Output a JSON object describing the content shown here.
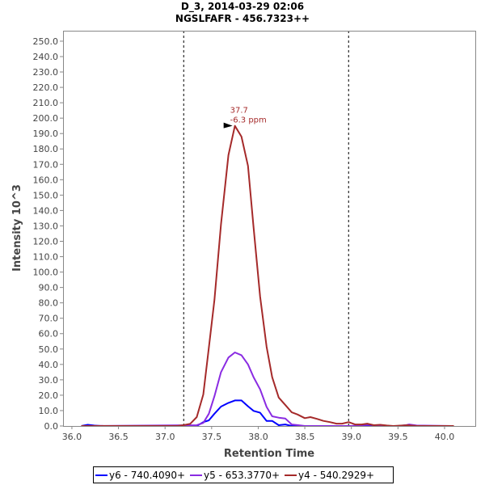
{
  "chart_data": {
    "type": "line",
    "title": "D_3, 2014-03-29 02:06",
    "subtitle": "NGSLFAFR - 456.7323++",
    "xlabel": "Retention Time",
    "ylabel": "Intensity 10^3",
    "xlim": [
      35.905,
      40.33
    ],
    "ylim": [
      0,
      256.8
    ],
    "xticks": [
      "36.0",
      "36.5",
      "37.0",
      "37.5",
      "38.0",
      "38.5",
      "39.0",
      "39.5",
      "40.0"
    ],
    "xtick_values": [
      36.0,
      36.5,
      37.0,
      37.5,
      38.0,
      38.5,
      39.0,
      39.5,
      40.0
    ],
    "ytick_step": 10,
    "ytick_max": 250,
    "grid": false,
    "legend_position": "bottom",
    "integration_bounds": [
      37.2,
      38.97
    ],
    "annotation": {
      "x": 37.75,
      "y": 195,
      "line1": "37.7",
      "line2": "-6.3 ppm",
      "color": "#a52a2a"
    },
    "series": [
      {
        "name": "y6 - 740.4090+",
        "color": "#0000ff",
        "points": [
          [
            36.1,
            0
          ],
          [
            36.17,
            0.8
          ],
          [
            36.24,
            0.3
          ],
          [
            36.31,
            0
          ],
          [
            37.34,
            0
          ],
          [
            37.41,
            2.5
          ],
          [
            37.47,
            3.7
          ],
          [
            37.53,
            8
          ],
          [
            37.6,
            12.6
          ],
          [
            37.68,
            15
          ],
          [
            37.75,
            16.6
          ],
          [
            37.82,
            16.6
          ],
          [
            37.89,
            12.8
          ],
          [
            37.95,
            9.8
          ],
          [
            38.02,
            8.6
          ],
          [
            38.09,
            3.3
          ],
          [
            38.15,
            3.3
          ],
          [
            38.22,
            0.5
          ],
          [
            38.29,
            1
          ],
          [
            38.36,
            0
          ],
          [
            39.5,
            0
          ],
          [
            39.6,
            0.6
          ],
          [
            39.7,
            0
          ],
          [
            40.1,
            0
          ]
        ]
      },
      {
        "name": "y5 - 653.3770+",
        "color": "#8a2be2",
        "points": [
          [
            36.1,
            0
          ],
          [
            37.34,
            0.5
          ],
          [
            37.41,
            2
          ],
          [
            37.47,
            8
          ],
          [
            37.53,
            19.4
          ],
          [
            37.6,
            35
          ],
          [
            37.68,
            44.5
          ],
          [
            37.75,
            47.8
          ],
          [
            37.82,
            46
          ],
          [
            37.89,
            40
          ],
          [
            37.95,
            31.7
          ],
          [
            38.02,
            23.8
          ],
          [
            38.09,
            12.4
          ],
          [
            38.15,
            6.3
          ],
          [
            38.22,
            5.4
          ],
          [
            38.29,
            4.9
          ],
          [
            38.36,
            1
          ],
          [
            38.43,
            0.5
          ],
          [
            38.5,
            0
          ],
          [
            39.0,
            0
          ],
          [
            39.1,
            0.5
          ],
          [
            39.2,
            0.8
          ],
          [
            39.3,
            0
          ],
          [
            39.55,
            0
          ],
          [
            39.62,
            1
          ],
          [
            39.7,
            0.3
          ],
          [
            40.1,
            0
          ]
        ]
      },
      {
        "name": "y4 - 540.2929+",
        "color": "#a52a2a",
        "points": [
          [
            36.1,
            0
          ],
          [
            37.13,
            0
          ],
          [
            37.195,
            0.5
          ],
          [
            37.27,
            1.4
          ],
          [
            37.34,
            5.8
          ],
          [
            37.41,
            20.5
          ],
          [
            37.47,
            51
          ],
          [
            37.53,
            82
          ],
          [
            37.6,
            131
          ],
          [
            37.68,
            176
          ],
          [
            37.75,
            195
          ],
          [
            37.82,
            188
          ],
          [
            37.89,
            169
          ],
          [
            37.95,
            129
          ],
          [
            38.02,
            84
          ],
          [
            38.09,
            51.5
          ],
          [
            38.15,
            31.7
          ],
          [
            38.22,
            18.5
          ],
          [
            38.29,
            13.7
          ],
          [
            38.36,
            8.9
          ],
          [
            38.42,
            7.5
          ],
          [
            38.5,
            5.1
          ],
          [
            38.56,
            5.8
          ],
          [
            38.63,
            4.6
          ],
          [
            38.7,
            3.3
          ],
          [
            38.77,
            2.5
          ],
          [
            38.84,
            1.5
          ],
          [
            38.9,
            1.5
          ],
          [
            38.97,
            2.5
          ],
          [
            39.04,
            1
          ],
          [
            39.11,
            1
          ],
          [
            39.17,
            1.5
          ],
          [
            39.24,
            0.5
          ],
          [
            39.31,
            0.8
          ],
          [
            39.38,
            0.3
          ],
          [
            39.45,
            0
          ],
          [
            39.6,
            0.5
          ],
          [
            39.7,
            0
          ],
          [
            40.1,
            0
          ]
        ]
      }
    ]
  }
}
